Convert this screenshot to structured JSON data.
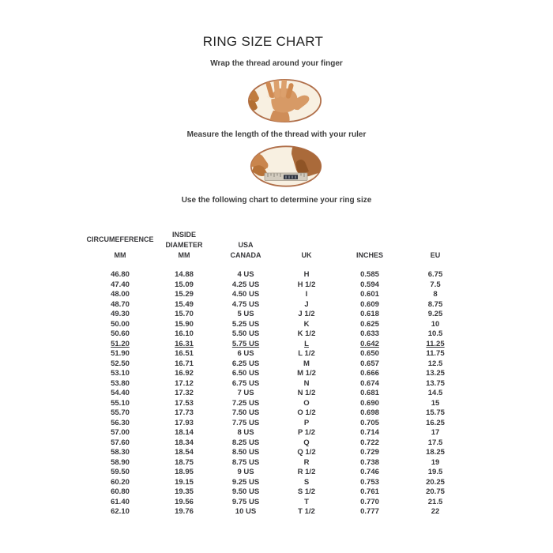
{
  "page": {
    "title": "RING SIZE CHART",
    "instructions": {
      "step1": "Wrap the thread around your finger",
      "step2": "Measure the length of the thread with your ruler",
      "step3": "Use the following chart to determine your ring size"
    },
    "illustrations": {
      "step1_icon": "hand-with-thread-wrapped-around-finger",
      "step2_icon": "hands-measuring-thread-with-ruler"
    }
  },
  "table": {
    "headers": [
      {
        "lines": [
          "CIRCUMEFERENCE",
          "MM"
        ],
        "spread": true
      },
      {
        "lines": [
          "INSIDE",
          "DIAMETER",
          "MM"
        ]
      },
      {
        "lines": [
          "USA",
          "CANADA"
        ]
      },
      {
        "lines": [
          "UK"
        ]
      },
      {
        "lines": [
          "INCHES"
        ]
      },
      {
        "lines": [
          "EU"
        ]
      }
    ],
    "rows": [
      [
        "46.80",
        "14.88",
        "4 US",
        "H",
        "0.585",
        "6.75"
      ],
      [
        "47.40",
        "15.09",
        "4.25 US",
        "H 1/2",
        "0.594",
        "7.5"
      ],
      [
        "48.00",
        "15.29",
        "4.50 US",
        "I",
        "0.601",
        "8"
      ],
      [
        "48.70",
        "15.49",
        "4.75 US",
        "J",
        "0.609",
        "8.75"
      ],
      [
        "49.30",
        "15.70",
        "5 US",
        "J 1/2",
        "0.618",
        "9.25"
      ],
      [
        "50.00",
        "15.90",
        "5.25 US",
        "K",
        "0.625",
        "10"
      ],
      [
        "50.60",
        "16.10",
        "5.50 US",
        "K 1/2",
        "0.633",
        "10.5"
      ],
      [
        "51.20",
        "16.31",
        "5.75 US",
        "L",
        "0.642",
        "11.25"
      ],
      [
        "51.90",
        "16.51",
        "6 US",
        "L 1/2",
        "0.650",
        "11.75"
      ],
      [
        "52.50",
        "16.71",
        "6.25 US",
        "M",
        "0.657",
        "12.5"
      ],
      [
        "53.10",
        "16.92",
        "6.50 US",
        "M 1/2",
        "0.666",
        "13.25"
      ],
      [
        "53.80",
        "17.12",
        "6.75 US",
        "N",
        "0.674",
        "13.75"
      ],
      [
        "54.40",
        "17.32",
        "7 US",
        "N 1/2",
        "0.681",
        "14.5"
      ],
      [
        "55.10",
        "17.53",
        "7.25 US",
        "O",
        "0.690",
        "15"
      ],
      [
        "55.70",
        "17.73",
        "7.50 US",
        "O 1/2",
        "0.698",
        "15.75"
      ],
      [
        "56.30",
        "17.93",
        "7.75 US",
        "P",
        "0.705",
        "16.25"
      ],
      [
        "57.00",
        "18.14",
        "8 US",
        "P 1/2",
        "0.714",
        "17"
      ],
      [
        "57.60",
        "18.34",
        "8.25 US",
        "Q",
        "0.722",
        "17.5"
      ],
      [
        "58.30",
        "18.54",
        "8.50 US",
        "Q 1/2",
        "0.729",
        "18.25"
      ],
      [
        "58.90",
        "18.75",
        "8.75 US",
        "R",
        "0.738",
        "19"
      ],
      [
        "59.50",
        "18.95",
        "9 US",
        "R 1/2",
        "0.746",
        "19.5"
      ],
      [
        "60.20",
        "19.15",
        "9.25 US",
        "S",
        "0.753",
        "20.25"
      ],
      [
        "60.80",
        "19.35",
        "9.50 US",
        "S 1/2",
        "0.761",
        "20.75"
      ],
      [
        "61.40",
        "19.56",
        "9.75 US",
        "T",
        "0.770",
        "21.5"
      ],
      [
        "62.10",
        "19.76",
        "10 US",
        "T 1/2",
        "0.777",
        "22"
      ]
    ],
    "underlined_row_index": 7
  },
  "colors": {
    "text": "#38383a",
    "illustration_border": "#b06f4a",
    "illustration_background": "#f8f0e1",
    "skin_tone": "#d2905c",
    "ruler": "#d3ccbf"
  }
}
